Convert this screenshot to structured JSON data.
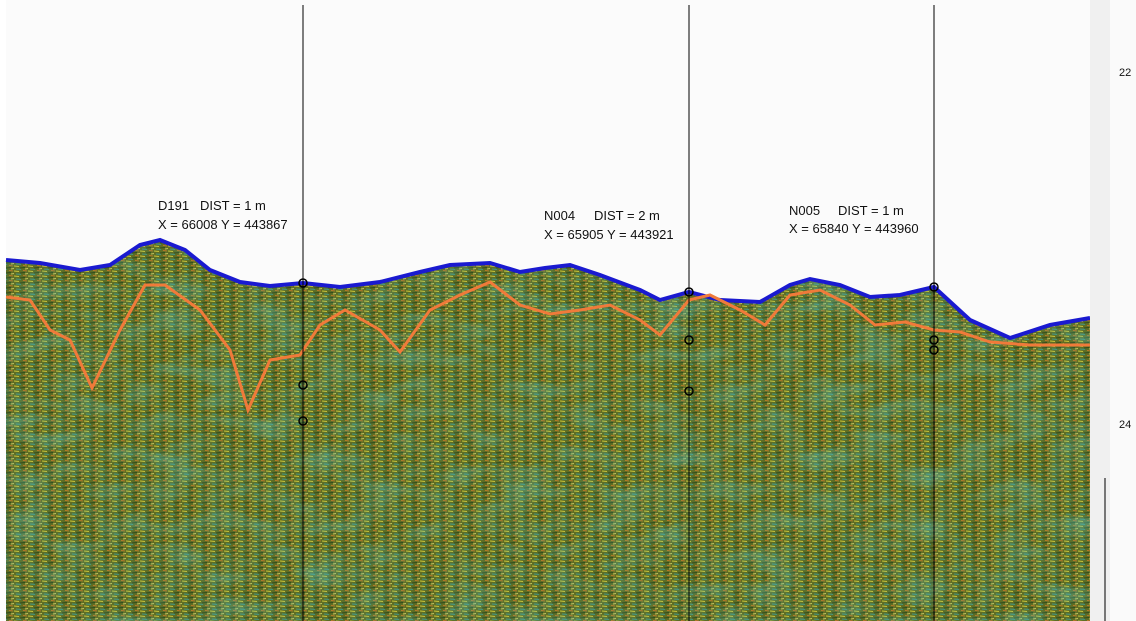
{
  "markers": [
    {
      "name": "D191",
      "dist": "DIST = 1 m",
      "coords": "X = 66008 Y = 443867"
    },
    {
      "name": "N004",
      "dist": "DIST = 2 m",
      "coords": "X = 65905 Y = 443921"
    },
    {
      "name": "N005",
      "dist": "DIST = 1 m",
      "coords": "X = 65840 Y = 443960"
    }
  ],
  "depth_axis": {
    "labels": [
      "22",
      "24"
    ]
  }
}
